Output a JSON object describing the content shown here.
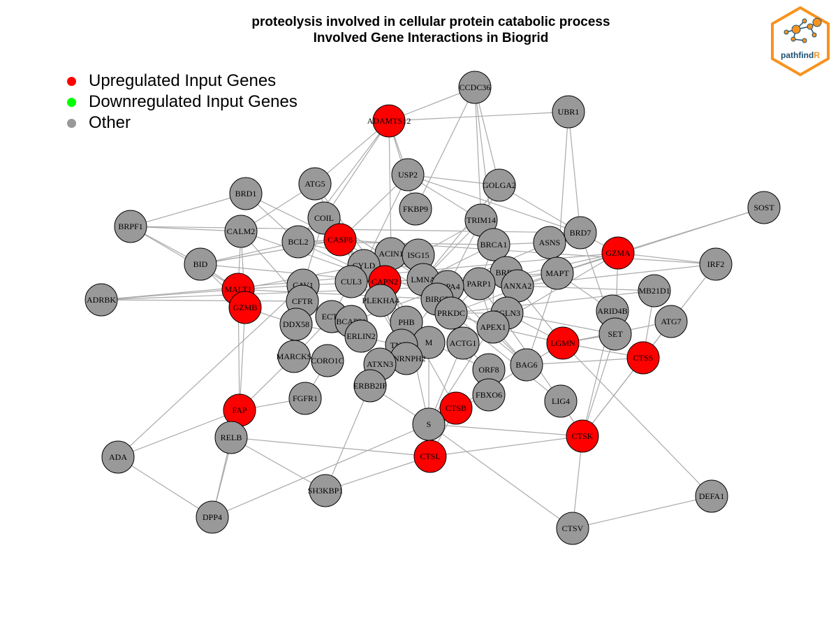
{
  "title": {
    "line1": "proteolysis involved in cellular protein catabolic process",
    "line2": "Involved Gene Interactions in Biogrid"
  },
  "legend": {
    "items": [
      {
        "label": "Upregulated Input Genes",
        "color": "#ff0000"
      },
      {
        "label": "Downregulated Input Genes",
        "color": "#00ff00"
      },
      {
        "label": "Other",
        "color": "#999999"
      }
    ]
  },
  "logo": {
    "text_main": "pathfind",
    "text_accent": "R"
  },
  "colors": {
    "up": "#ff0000",
    "other": "#999999",
    "edge": "#aaaaaa",
    "logo_orange": "#f7931e",
    "logo_blue": "#1b4f72"
  },
  "nodes": [
    {
      "id": "CCDC36",
      "status": "other"
    },
    {
      "id": "UBR1",
      "status": "other"
    },
    {
      "id": "ADAMTS12",
      "status": "up"
    },
    {
      "id": "USP2",
      "status": "other"
    },
    {
      "id": "ATG5",
      "status": "other"
    },
    {
      "id": "GOLGA2",
      "status": "other"
    },
    {
      "id": "BRD1",
      "status": "other"
    },
    {
      "id": "FKBP9",
      "status": "other"
    },
    {
      "id": "SOST",
      "status": "other"
    },
    {
      "id": "BRPF1",
      "status": "other"
    },
    {
      "id": "COIL",
      "status": "other"
    },
    {
      "id": "TRIM14",
      "status": "other"
    },
    {
      "id": "CALM2",
      "status": "other"
    },
    {
      "id": "BRD7",
      "status": "other"
    },
    {
      "id": "CASP8",
      "status": "up"
    },
    {
      "id": "BCL2",
      "status": "other"
    },
    {
      "id": "ASNS",
      "status": "other"
    },
    {
      "id": "BRCA1",
      "status": "other"
    },
    {
      "id": "GZMA",
      "status": "up"
    },
    {
      "id": "ACIN1",
      "status": "other"
    },
    {
      "id": "ISG15",
      "status": "other"
    },
    {
      "id": "BID",
      "status": "other"
    },
    {
      "id": "CYLD",
      "status": "other"
    },
    {
      "id": "IRF2",
      "status": "other"
    },
    {
      "id": "MAPT",
      "status": "other"
    },
    {
      "id": "BRD4",
      "status": "other"
    },
    {
      "id": "LMNA",
      "status": "other"
    },
    {
      "id": "CAPN2",
      "status": "up"
    },
    {
      "id": "CUL3",
      "status": "other"
    },
    {
      "id": "CAV1",
      "status": "other"
    },
    {
      "id": "MALT1",
      "status": "up"
    },
    {
      "id": "PARP1",
      "status": "other"
    },
    {
      "id": "HSPA4",
      "status": "other"
    },
    {
      "id": "ANXA2",
      "status": "other"
    },
    {
      "id": "MB21D1",
      "status": "other"
    },
    {
      "id": "ADRBK",
      "status": "other"
    },
    {
      "id": "CFTR",
      "status": "other"
    },
    {
      "id": "PLEKHA4",
      "status": "other"
    },
    {
      "id": "BIRC3",
      "status": "other"
    },
    {
      "id": "GZMB",
      "status": "up"
    },
    {
      "id": "ARID4B",
      "status": "other"
    },
    {
      "id": "PRKDC",
      "status": "other"
    },
    {
      "id": "EGLN3",
      "status": "other"
    },
    {
      "id": "ECT2",
      "status": "other"
    },
    {
      "id": "ATG7",
      "status": "other"
    },
    {
      "id": "BCAP31",
      "status": "other"
    },
    {
      "id": "DDX58",
      "status": "other"
    },
    {
      "id": "PHB",
      "status": "other"
    },
    {
      "id": "APEX1",
      "status": "other"
    },
    {
      "id": "SET",
      "status": "other"
    },
    {
      "id": "LGMN",
      "status": "up"
    },
    {
      "id": "ERLIN2",
      "status": "other"
    },
    {
      "id": "M",
      "status": "other"
    },
    {
      "id": "TNIP2",
      "status": "other"
    },
    {
      "id": "ACTG1",
      "status": "other"
    },
    {
      "id": "MARCKS",
      "status": "other"
    },
    {
      "id": "HNRNPH2",
      "status": "other"
    },
    {
      "id": "CTSS",
      "status": "up"
    },
    {
      "id": "CORO1C",
      "status": "other"
    },
    {
      "id": "BAG6",
      "status": "other"
    },
    {
      "id": "ATXN3",
      "status": "other"
    },
    {
      "id": "ORF8",
      "status": "other"
    },
    {
      "id": "ERBB2IP",
      "status": "other"
    },
    {
      "id": "FBXO6",
      "status": "other"
    },
    {
      "id": "FGFR1",
      "status": "other"
    },
    {
      "id": "LIG4",
      "status": "other"
    },
    {
      "id": "FAP",
      "status": "up"
    },
    {
      "id": "CTSB",
      "status": "up"
    },
    {
      "id": "S",
      "status": "other"
    },
    {
      "id": "RELB",
      "status": "other"
    },
    {
      "id": "CTSK",
      "status": "up"
    },
    {
      "id": "CTSL",
      "status": "up"
    },
    {
      "id": "ADA",
      "status": "other"
    },
    {
      "id": "SH3KBP1",
      "status": "other"
    },
    {
      "id": "DEFA1",
      "status": "other"
    },
    {
      "id": "DPP4",
      "status": "other"
    },
    {
      "id": "CTSV",
      "status": "other"
    }
  ],
  "edges": [
    [
      "CCDC36",
      "ADAMTS12"
    ],
    [
      "CCDC36",
      "GOLGA2"
    ],
    [
      "CCDC36",
      "TRIM14"
    ],
    [
      "CCDC36",
      "BRCA1"
    ],
    [
      "CCDC36",
      "FKBP9"
    ],
    [
      "UBR1",
      "ADAMTS12"
    ],
    [
      "UBR1",
      "BRD7"
    ],
    [
      "UBR1",
      "MAPT"
    ],
    [
      "ADAMTS12",
      "USP2"
    ],
    [
      "ADAMTS12",
      "ATG5"
    ],
    [
      "ADAMTS12",
      "COIL"
    ],
    [
      "ADAMTS12",
      "FKBP9"
    ],
    [
      "ADAMTS12",
      "ACIN1"
    ],
    [
      "ADAMTS12",
      "BCL2"
    ],
    [
      "USP2",
      "GOLGA2"
    ],
    [
      "USP2",
      "BRD7"
    ],
    [
      "USP2",
      "TRIM14"
    ],
    [
      "USP2",
      "CASP8"
    ],
    [
      "USP2",
      "CYLD"
    ],
    [
      "ATG5",
      "CALM2"
    ],
    [
      "ATG5",
      "CAPN2"
    ],
    [
      "ATG5",
      "CASP8"
    ],
    [
      "GOLGA2",
      "BRD7"
    ],
    [
      "GOLGA2",
      "LMNA"
    ],
    [
      "GOLGA2",
      "HSPA4"
    ],
    [
      "BRD1",
      "BRPF1"
    ],
    [
      "BRD1",
      "BCL2"
    ],
    [
      "BRD1",
      "CASP8"
    ],
    [
      "SOST",
      "GZMA"
    ],
    [
      "SOST",
      "MAPT"
    ],
    [
      "BRPF1",
      "BID"
    ],
    [
      "BRPF1",
      "MALT1"
    ],
    [
      "BRPF1",
      "BRD7"
    ],
    [
      "BRPF1",
      "CALM2"
    ],
    [
      "COIL",
      "LMNA"
    ],
    [
      "COIL",
      "PHB"
    ],
    [
      "COIL",
      "CAV1"
    ],
    [
      "TRIM14",
      "BRCA1"
    ],
    [
      "TRIM14",
      "LMNA"
    ],
    [
      "TRIM14",
      "ISG15"
    ],
    [
      "CALM2",
      "MALT1"
    ],
    [
      "CALM2",
      "GZMB"
    ],
    [
      "CALM2",
      "CAPN2"
    ],
    [
      "CALM2",
      "CFTR"
    ],
    [
      "BRD7",
      "GZMA"
    ],
    [
      "BRD7",
      "SET"
    ],
    [
      "BRD7",
      "ASNS"
    ],
    [
      "CASP8",
      "CYLD"
    ],
    [
      "CASP8",
      "BCL2"
    ],
    [
      "CASP8",
      "BID"
    ],
    [
      "CASP8",
      "CAPN2"
    ],
    [
      "CASP8",
      "TNIP2"
    ],
    [
      "CASP8",
      "BIRC3"
    ],
    [
      "BCL2",
      "BID"
    ],
    [
      "BCL2",
      "CAPN2"
    ],
    [
      "BCL2",
      "PARP1"
    ],
    [
      "BCL2",
      "BRCA1"
    ],
    [
      "ASNS",
      "BRCA1"
    ],
    [
      "ASNS",
      "MAPT"
    ],
    [
      "ASNS",
      "HSPA4"
    ],
    [
      "BRCA1",
      "BRD4"
    ],
    [
      "BRCA1",
      "PARP1"
    ],
    [
      "BRCA1",
      "LMNA"
    ],
    [
      "BRCA1",
      "APEX1"
    ],
    [
      "GZMA",
      "IRF2"
    ],
    [
      "GZMA",
      "PARP1"
    ],
    [
      "GZMA",
      "SET"
    ],
    [
      "GZMA",
      "APEX1"
    ],
    [
      "GZMA",
      "ANXA2"
    ],
    [
      "GZMA",
      "ADRBK"
    ],
    [
      "ACIN1",
      "CAPN2"
    ],
    [
      "ACIN1",
      "LMNA"
    ],
    [
      "ISG15",
      "CYLD"
    ],
    [
      "ISG15",
      "CUL3"
    ],
    [
      "BID",
      "CASP8"
    ],
    [
      "BID",
      "GZMB"
    ],
    [
      "BID",
      "CAPN2"
    ],
    [
      "BID",
      "MALT1"
    ],
    [
      "CYLD",
      "CUL3"
    ],
    [
      "CYLD",
      "MALT1"
    ],
    [
      "CYLD",
      "TNIP2"
    ],
    [
      "CYLD",
      "BIRC3"
    ],
    [
      "IRF2",
      "ATG7"
    ],
    [
      "IRF2",
      "ANXA2"
    ],
    [
      "IRF2",
      "CASP8"
    ],
    [
      "MAPT",
      "HSPA4"
    ],
    [
      "MAPT",
      "CAPN2"
    ],
    [
      "MAPT",
      "PRKDC"
    ],
    [
      "MAPT",
      "BAG6"
    ],
    [
      "MAPT",
      "ARID4B"
    ],
    [
      "BRD4",
      "PARP1"
    ],
    [
      "BRD4",
      "EGLN3"
    ],
    [
      "BRD4",
      "LGMN"
    ],
    [
      "LMNA",
      "CAPN2"
    ],
    [
      "LMNA",
      "PRKDC"
    ],
    [
      "LMNA",
      "BAG6"
    ],
    [
      "CAPN2",
      "CUL3"
    ],
    [
      "CAPN2",
      "CAV1"
    ],
    [
      "CAPN2",
      "HSPA4"
    ],
    [
      "CAPN2",
      "PHB"
    ],
    [
      "CAPN2",
      "CTSB"
    ],
    [
      "CAPN2",
      "M"
    ],
    [
      "CUL3",
      "ECT2"
    ],
    [
      "CUL3",
      "PLEKHA4"
    ],
    [
      "CAV1",
      "CFTR"
    ],
    [
      "CAV1",
      "MALT1"
    ],
    [
      "MALT1",
      "GZMB"
    ],
    [
      "MALT1",
      "ADRBK"
    ],
    [
      "MALT1",
      "BIRC3"
    ],
    [
      "MALT1",
      "FAP"
    ],
    [
      "PARP1",
      "APEX1"
    ],
    [
      "PARP1",
      "PRKDC"
    ],
    [
      "PARP1",
      "LIG4"
    ],
    [
      "HSPA4",
      "BAG6"
    ],
    [
      "HSPA4",
      "BCAP31"
    ],
    [
      "ANXA2",
      "MB21D1"
    ],
    [
      "ANXA2",
      "S"
    ],
    [
      "MB21D1",
      "CTSS"
    ],
    [
      "MB21D1",
      "PRKDC"
    ],
    [
      "ADRBK",
      "CFTR"
    ],
    [
      "ADRBK",
      "HSPA4"
    ],
    [
      "CFTR",
      "BCAP31"
    ],
    [
      "CFTR",
      "ERLIN2"
    ],
    [
      "PLEKHA4",
      "HNRNPH2"
    ],
    [
      "BIRC3",
      "TNIP2"
    ],
    [
      "GZMB",
      "FAP"
    ],
    [
      "GZMB",
      "DDX58"
    ],
    [
      "ARID4B",
      "SET"
    ],
    [
      "ARID4B",
      "CTSK"
    ],
    [
      "PRKDC",
      "APEX1"
    ],
    [
      "PRKDC",
      "EGLN3"
    ],
    [
      "PRKDC",
      "LIG4"
    ],
    [
      "EGLN3",
      "LGMN"
    ],
    [
      "EGLN3",
      "SET"
    ],
    [
      "ECT2",
      "BCAP31"
    ],
    [
      "ECT2",
      "MARCKS"
    ],
    [
      "ATG7",
      "CTSS"
    ],
    [
      "ATG7",
      "LGMN"
    ],
    [
      "ATG7",
      "CTSK"
    ],
    [
      "BCAP31",
      "ERLIN2"
    ],
    [
      "DDX58",
      "TNIP2"
    ],
    [
      "DDX58",
      "MARCKS"
    ],
    [
      "PHB",
      "M"
    ],
    [
      "PHB",
      "S"
    ],
    [
      "APEX1",
      "LGMN"
    ],
    [
      "APEX1",
      "BAG6"
    ],
    [
      "SET",
      "LGMN"
    ],
    [
      "SET",
      "CTSK"
    ],
    [
      "LGMN",
      "CTSS"
    ],
    [
      "LGMN",
      "CTSB"
    ],
    [
      "LGMN",
      "DEFA1"
    ],
    [
      "M",
      "S"
    ],
    [
      "M",
      "ORF8"
    ],
    [
      "TNIP2",
      "HNRNPH2"
    ],
    [
      "ACTG1",
      "ORF8"
    ],
    [
      "ACTG1",
      "S"
    ],
    [
      "MARCKS",
      "FAP"
    ],
    [
      "MARCKS",
      "CORO1C"
    ],
    [
      "CTSS",
      "BAG6"
    ],
    [
      "CTSS",
      "CTSK"
    ],
    [
      "CORO1C",
      "FGFR1"
    ],
    [
      "ATXN3",
      "ERBB2IP"
    ],
    [
      "ATXN3",
      "HNRNPH2"
    ],
    [
      "ORF8",
      "FBXO6"
    ],
    [
      "ERBB2IP",
      "S"
    ],
    [
      "ERBB2IP",
      "SH3KBP1"
    ],
    [
      "FBXO6",
      "CTSB"
    ],
    [
      "FGFR1",
      "FAP"
    ],
    [
      "LIG4",
      "CTSK"
    ],
    [
      "FAP",
      "ADA"
    ],
    [
      "FAP",
      "DPP4"
    ],
    [
      "FAP",
      "RELB"
    ],
    [
      "CTSB",
      "CTSL"
    ],
    [
      "CTSB",
      "S"
    ],
    [
      "S",
      "CTSL"
    ],
    [
      "S",
      "DPP4"
    ],
    [
      "S",
      "CTSK"
    ],
    [
      "RELB",
      "CTSL"
    ],
    [
      "RELB",
      "DPP4"
    ],
    [
      "RELB",
      "SH3KBP1"
    ],
    [
      "CTSK",
      "CTSV"
    ],
    [
      "CTSK",
      "CTSL"
    ],
    [
      "ADA",
      "DPP4"
    ],
    [
      "ADA",
      "CAV1"
    ],
    [
      "SH3KBP1",
      "CTSL"
    ],
    [
      "DEFA1",
      "CTSV"
    ],
    [
      "CTSV",
      "S"
    ]
  ]
}
